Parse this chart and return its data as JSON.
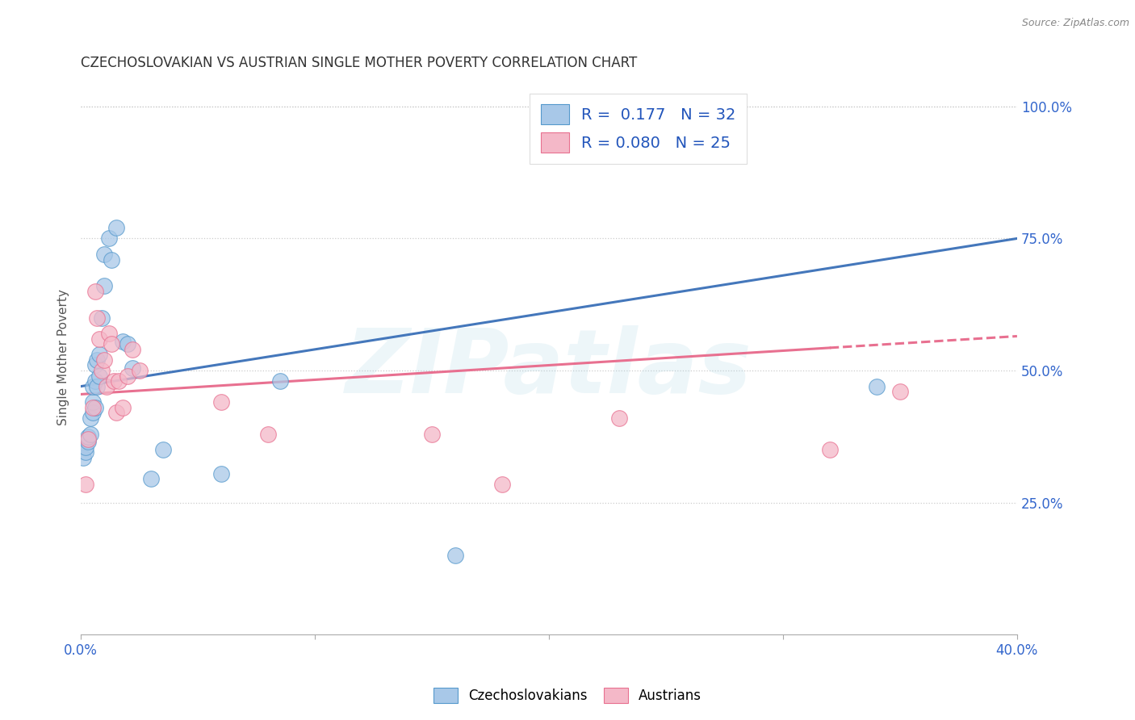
{
  "title": "CZECHOSLOVAKIAN VS AUSTRIAN SINGLE MOTHER POVERTY CORRELATION CHART",
  "source": "Source: ZipAtlas.com",
  "ylabel": "Single Mother Poverty",
  "xlim": [
    0.0,
    0.4
  ],
  "ylim": [
    0.0,
    1.05
  ],
  "xtick_positions": [
    0.0,
    0.1,
    0.2,
    0.3,
    0.4
  ],
  "xticklabels": [
    "0.0%",
    "",
    "",
    "",
    "40.0%"
  ],
  "ytick_positions": [
    0.25,
    0.5,
    0.75,
    1.0
  ],
  "ytick_labels": [
    "25.0%",
    "50.0%",
    "75.0%",
    "100.0%"
  ],
  "color_czech": "#a8c8e8",
  "color_austria": "#f4b8c8",
  "edge_czech": "#5599cc",
  "edge_austria": "#e87090",
  "line_czech_color": "#4477bb",
  "line_austria_color": "#e87090",
  "watermark": "ZIPatlas",
  "legend_label1": "Czechoslovakians",
  "legend_label2": "Austrians",
  "legend_R1": "R =  0.177",
  "legend_N1": "N = 32",
  "legend_R2": "R = 0.080",
  "legend_N2": "N = 25",
  "czech_line_x0": 0.0,
  "czech_line_y0": 0.47,
  "czech_line_x1": 0.4,
  "czech_line_y1": 0.75,
  "austria_line_x0": 0.0,
  "austria_line_y0": 0.455,
  "austria_line_x1": 0.4,
  "austria_line_y1": 0.565,
  "czech_x": [
    0.001,
    0.002,
    0.002,
    0.003,
    0.003,
    0.004,
    0.004,
    0.005,
    0.005,
    0.005,
    0.006,
    0.006,
    0.006,
    0.007,
    0.007,
    0.008,
    0.008,
    0.009,
    0.01,
    0.01,
    0.012,
    0.013,
    0.015,
    0.018,
    0.02,
    0.022,
    0.03,
    0.035,
    0.06,
    0.085,
    0.16,
    0.34
  ],
  "czech_y": [
    0.335,
    0.345,
    0.355,
    0.365,
    0.375,
    0.38,
    0.41,
    0.42,
    0.44,
    0.47,
    0.43,
    0.48,
    0.51,
    0.47,
    0.52,
    0.49,
    0.53,
    0.6,
    0.66,
    0.72,
    0.75,
    0.71,
    0.77,
    0.555,
    0.55,
    0.505,
    0.295,
    0.35,
    0.305,
    0.48,
    0.15,
    0.47
  ],
  "austria_x": [
    0.002,
    0.003,
    0.005,
    0.006,
    0.007,
    0.008,
    0.009,
    0.01,
    0.011,
    0.012,
    0.013,
    0.014,
    0.015,
    0.016,
    0.018,
    0.02,
    0.022,
    0.025,
    0.06,
    0.08,
    0.15,
    0.18,
    0.23,
    0.32,
    0.35
  ],
  "austria_y": [
    0.285,
    0.37,
    0.43,
    0.65,
    0.6,
    0.56,
    0.5,
    0.52,
    0.47,
    0.57,
    0.55,
    0.48,
    0.42,
    0.48,
    0.43,
    0.49,
    0.54,
    0.5,
    0.44,
    0.38,
    0.38,
    0.285,
    0.41,
    0.35,
    0.46
  ]
}
